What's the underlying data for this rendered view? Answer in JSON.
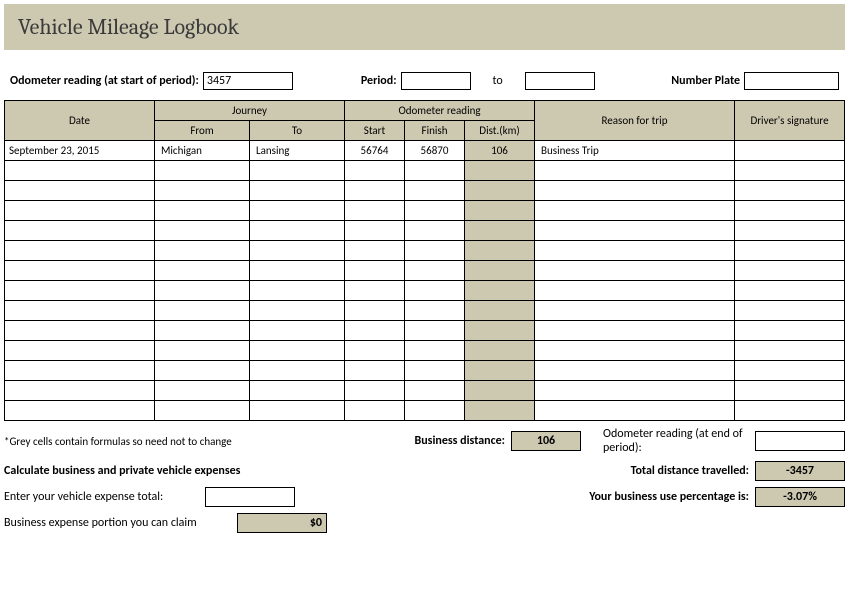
{
  "title": "Vehicle Mileage Logbook",
  "top_fields": {
    "odometer_start_label": "Odometer reading (at start of period):",
    "odometer_start_value": "3457",
    "period_label": "Period:",
    "period_from": "",
    "period_to_label": "to",
    "period_to": "",
    "number_plate_label": "Number Plate",
    "number_plate_value": ""
  },
  "table": {
    "headers": {
      "date": "Date",
      "journey": "Journey",
      "from": "From",
      "to": "To",
      "odometer": "Odometer reading",
      "start": "Start",
      "finish": "Finish",
      "dist": "Dist.(km)",
      "reason": "Reason for trip",
      "signature": "Driver's signature"
    },
    "col_widths": {
      "date": "150px",
      "from": "95px",
      "to": "95px",
      "start": "60px",
      "finish": "60px",
      "dist": "70px",
      "reason": "200px",
      "signature": "107px"
    },
    "rows": [
      {
        "date": "September 23, 2015",
        "from": "Michigan",
        "to": "Lansing",
        "start": "56764",
        "finish": "56870",
        "dist": "106",
        "reason": "Business Trip",
        "signature": ""
      },
      {
        "date": "",
        "from": "",
        "to": "",
        "start": "",
        "finish": "",
        "dist": "",
        "reason": "",
        "signature": ""
      },
      {
        "date": "",
        "from": "",
        "to": "",
        "start": "",
        "finish": "",
        "dist": "",
        "reason": "",
        "signature": ""
      },
      {
        "date": "",
        "from": "",
        "to": "",
        "start": "",
        "finish": "",
        "dist": "",
        "reason": "",
        "signature": ""
      },
      {
        "date": "",
        "from": "",
        "to": "",
        "start": "",
        "finish": "",
        "dist": "",
        "reason": "",
        "signature": ""
      },
      {
        "date": "",
        "from": "",
        "to": "",
        "start": "",
        "finish": "",
        "dist": "",
        "reason": "",
        "signature": ""
      },
      {
        "date": "",
        "from": "",
        "to": "",
        "start": "",
        "finish": "",
        "dist": "",
        "reason": "",
        "signature": ""
      },
      {
        "date": "",
        "from": "",
        "to": "",
        "start": "",
        "finish": "",
        "dist": "",
        "reason": "",
        "signature": ""
      },
      {
        "date": "",
        "from": "",
        "to": "",
        "start": "",
        "finish": "",
        "dist": "",
        "reason": "",
        "signature": ""
      },
      {
        "date": "",
        "from": "",
        "to": "",
        "start": "",
        "finish": "",
        "dist": "",
        "reason": "",
        "signature": ""
      },
      {
        "date": "",
        "from": "",
        "to": "",
        "start": "",
        "finish": "",
        "dist": "",
        "reason": "",
        "signature": ""
      },
      {
        "date": "",
        "from": "",
        "to": "",
        "start": "",
        "finish": "",
        "dist": "",
        "reason": "",
        "signature": ""
      },
      {
        "date": "",
        "from": "",
        "to": "",
        "start": "",
        "finish": "",
        "dist": "",
        "reason": "",
        "signature": ""
      },
      {
        "date": "",
        "from": "",
        "to": "",
        "start": "",
        "finish": "",
        "dist": "",
        "reason": "",
        "signature": ""
      }
    ]
  },
  "footer": {
    "note": "*Grey cells contain formulas so need not to change",
    "business_distance_label": "Business distance:",
    "business_distance_value": "106",
    "odometer_end_label": "Odometer reading (at end of period):",
    "odometer_end_value": "",
    "calc_heading": "Calculate business and private vehicle expenses",
    "total_distance_label": "Total distance travelled:",
    "total_distance_value": "-3457",
    "expense_total_label": "Enter your vehicle expense total:",
    "expense_total_value": "",
    "percentage_label": "Your business use percentage is:",
    "percentage_value": "-3.07%",
    "claim_label": "Business expense portion you can claim",
    "claim_value": "$0"
  },
  "colors": {
    "header_bg": "#cdc8b0",
    "border": "#000000",
    "text": "#000000",
    "title_text": "#3a3a3a"
  }
}
